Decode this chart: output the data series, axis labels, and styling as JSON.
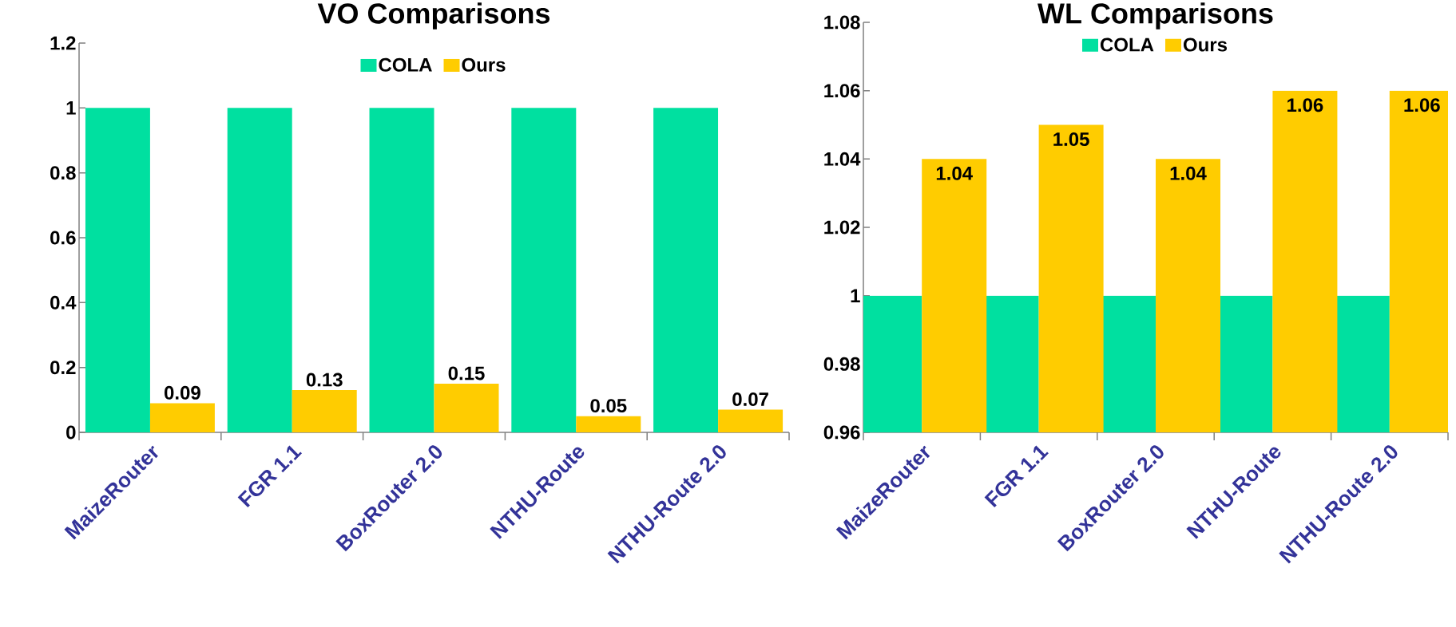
{
  "chart_data": [
    {
      "type": "bar",
      "title": "VO Comparisons",
      "categories": [
        "MaizeRouter",
        "FGR 1.1",
        "BoxRouter 2.0",
        "NTHU-Route",
        "NTHU-Route 2.0"
      ],
      "series": [
        {
          "name": "COLA",
          "color": "#00e0a0",
          "values": [
            1,
            1,
            1,
            1,
            1
          ]
        },
        {
          "name": "Ours",
          "color": "#ffcc00",
          "values": [
            0.09,
            0.13,
            0.15,
            0.05,
            0.07
          ],
          "value_labels": [
            "0.09",
            "0.13",
            "0.15",
            "0.05",
            "0.07"
          ]
        }
      ],
      "ylim": [
        0,
        1.2
      ],
      "yticks": [
        0,
        {
          "value": 0.2,
          "label": "0.2"
        },
        {
          "value": 0.4,
          "label": "0.4"
        },
        {
          "value": 0.6,
          "label": "0.6"
        },
        {
          "value": 0.8,
          "label": "0.8"
        },
        1,
        {
          "value": 1.2,
          "label": "1.2"
        }
      ],
      "legend": "top",
      "grid": false
    },
    {
      "type": "bar",
      "title": "WL Comparisons",
      "categories": [
        "MaizeRouter",
        "FGR 1.1",
        "BoxRouter 2.0",
        "NTHU-Route",
        "NTHU-Route 2.0"
      ],
      "series": [
        {
          "name": "COLA",
          "color": "#00e0a0",
          "values": [
            1,
            1,
            1,
            1,
            1
          ]
        },
        {
          "name": "Ours",
          "color": "#ffcc00",
          "values": [
            1.04,
            1.05,
            1.04,
            1.06,
            1.06
          ],
          "value_labels": [
            "1.04",
            "1.05",
            "1.04",
            "1.06",
            "1.06"
          ]
        }
      ],
      "ylim": [
        0.96,
        1.08
      ],
      "yticks": [
        {
          "value": 0.96,
          "label": "0.96"
        },
        {
          "value": 0.98,
          "label": "0.98"
        },
        1,
        {
          "value": 1.02,
          "label": "1.02"
        },
        {
          "value": 1.04,
          "label": "1.04"
        },
        {
          "value": 1.06,
          "label": "1.06"
        },
        {
          "value": 1.08,
          "label": "1.08"
        }
      ],
      "legend": "top",
      "grid": false
    }
  ]
}
